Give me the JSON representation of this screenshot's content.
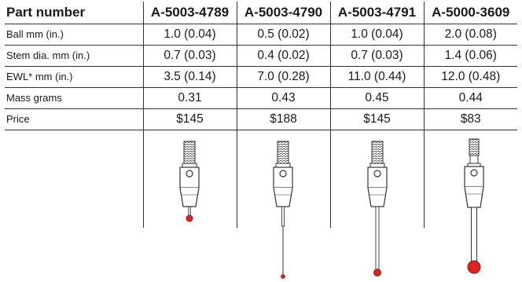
{
  "table": {
    "header": {
      "label": "Part number",
      "parts": [
        "A-5003-4789",
        "A-5003-4790",
        "A-5003-4791",
        "A-5000-3609"
      ]
    },
    "rows": [
      {
        "label": "Ball mm (in.)",
        "values": [
          "1.0 (0.04)",
          "0.5 (0.02)",
          "1.0 (0.04)",
          "2.0 (0.08)"
        ]
      },
      {
        "label": "Stem dia. mm (in.)",
        "values": [
          "0.7 (0.03)",
          "0.4 (0.02)",
          "0.7 (0.03)",
          "1.4 (0.06)"
        ]
      },
      {
        "label": "EWL* mm (in.)",
        "values": [
          "3.5 (0.14)",
          "7.0 (0.28)",
          "11.0 (0.44)",
          "12.0 (0.48)"
        ]
      },
      {
        "label": "Mass grams",
        "values": [
          "0.31",
          "0.43",
          "0.45",
          "0.44"
        ]
      },
      {
        "label": "Price",
        "values": [
          "$145",
          "$188",
          "$145",
          "$83"
        ]
      }
    ]
  },
  "colors": {
    "ball": "#e0231c",
    "rule": "#333333",
    "body": "#ffffff"
  }
}
